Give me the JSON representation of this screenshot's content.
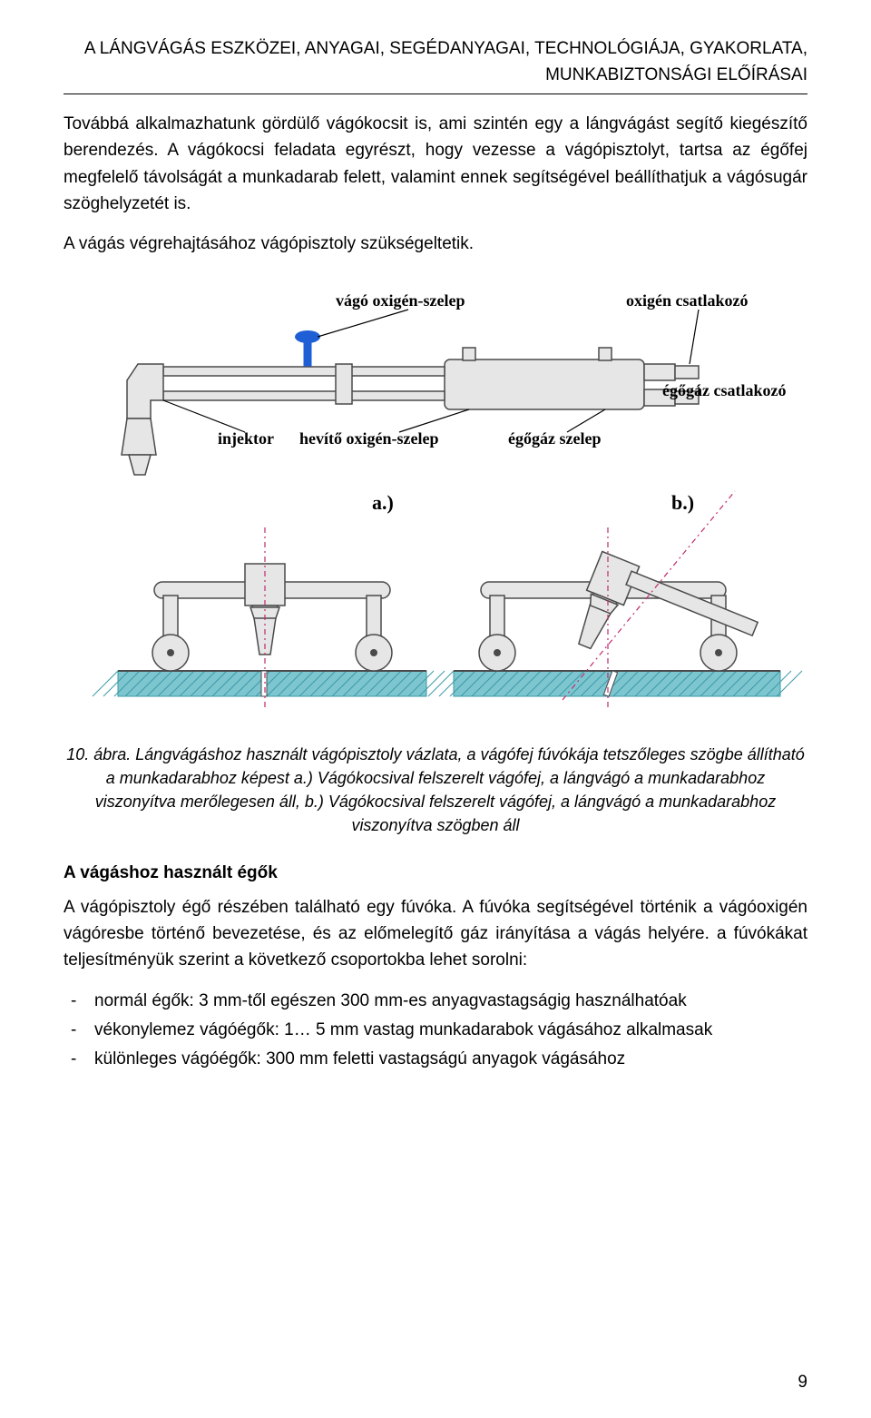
{
  "header": {
    "line1": "A LÁNGVÁGÁS ESZKÖZEI, ANYAGAI, SEGÉDANYAGAI, TECHNOLÓGIÁJA, GYAKORLATA,",
    "line2": "MUNKABIZTONSÁGI ELŐÍRÁSAI"
  },
  "paragraphs": {
    "p1": "Továbbá alkalmazhatunk gördülő vágókocsit is, ami szintén egy a lángvágást segítő kiegészítő berendezés. A vágókocsi feladata egyrészt, hogy vezesse a vágópisztolyt, tartsa az égőfej megfelelő távolságát a munkadarab felett, valamint ennek segítségével beállíthatjuk a vágósugár szöghelyzetét is.",
    "p2": "A vágás végrehajtásához vágópisztoly szükségeltetik.",
    "p3": "A vágópisztoly égő részében található egy fúvóka. A fúvóka segítségével történik a vágóoxigén vágóresbe történő bevezetése, és az előmelegítő gáz irányítása a vágás helyére. a fúvókákat teljesítményük szerint a következő csoportokba lehet sorolni:"
  },
  "caption": "10. ábra. Lángvágáshoz használt vágópisztoly vázlata, a vágófej fúvókája tetszőleges szögbe állítható a munkadarabhoz képest a.) Vágókocsival felszerelt vágófej, a lángvágó a munkadarabhoz viszonyítva merőlegesen áll, b.) Vágókocsival felszerelt vágófej, a lángvágó a munkadarabhoz viszonyítva szögben áll",
  "subhead": "A vágáshoz használt égők",
  "bullets": [
    "normál égők: 3 mm-től egészen 300 mm-es anyagvastagságig használhatóak",
    "vékonylemez vágóégők: 1… 5 mm vastag munkadarabok vágásához alkalmasak",
    "különleges vágóégők: 300 mm feletti vastagságú anyagok vágásához"
  ],
  "page_number": "9",
  "diagram": {
    "type": "technical-schematic",
    "colors": {
      "body_fill": "#e6e6e6",
      "body_stroke": "#4a4a4a",
      "knob_blue": "#1f5fd6",
      "label_text": "#000000",
      "leader_line": "#000000",
      "centerline": "#c02a6e",
      "workpiece_fill": "#7dc6d0",
      "workpiece_hatch": "#3c9aa6",
      "wheel_fill": "#e6e6e6",
      "wheel_stroke": "#4a4a4a",
      "sublabel_bg": "#ffffff"
    },
    "labels_top": {
      "vago_oxigen_szelep": "vágó oxigén-szelep",
      "oxigen_csatlakozo": "oxigén csatlakozó",
      "injektor": "injektor",
      "hevito_oxigen_szelep": "hevítő oxigén-szelep",
      "egogaz_szelep": "égőgáz szelep",
      "egogaz_csatlakozo": "égőgáz csatlakozó"
    },
    "sublabels": {
      "a": "a.)",
      "b": "b.)"
    },
    "font_size_label": 18,
    "leader_width": 1.2,
    "body_stroke_width": 1.5,
    "centerline_dash": "6 4 2 4"
  }
}
